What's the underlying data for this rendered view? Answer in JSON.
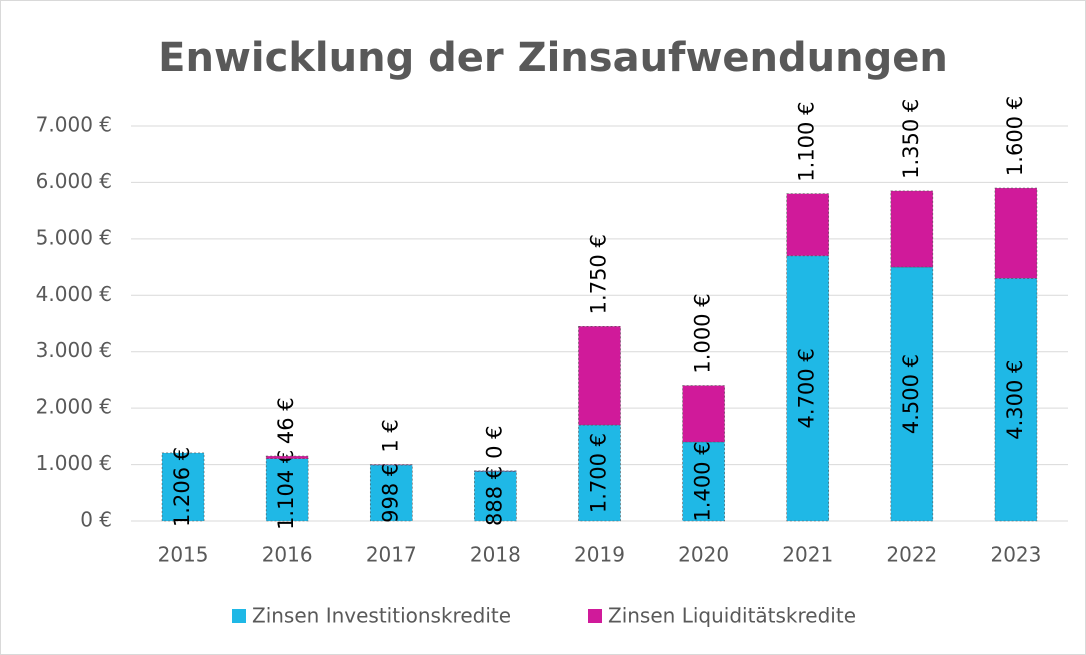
{
  "chart_data": {
    "type": "stacked-bar",
    "title": "Enwicklung der Zinsaufwendungen",
    "categories": [
      "2015",
      "2016",
      "2017",
      "2018",
      "2019",
      "2020",
      "2021",
      "2022",
      "2023"
    ],
    "series": [
      {
        "name": "Zinsen Investitionskredite",
        "color": "#1fb8e6",
        "values": [
          1206,
          1104,
          998,
          888,
          1700,
          1400,
          4700,
          4500,
          4300
        ],
        "value_labels": [
          "1.206 €",
          "1.104 €",
          "998 €",
          "888 €",
          "1.700 €",
          "1.400 €",
          "4.700 €",
          "4.500 €",
          "4.300 €"
        ]
      },
      {
        "name": "Zinsen Liquiditätskredite",
        "color": "#d01a9a",
        "values": [
          null,
          46,
          1,
          0,
          1750,
          1000,
          1100,
          1350,
          1600
        ],
        "value_labels": [
          null,
          "46 €",
          "1 €",
          "0 €",
          "1.750 €",
          "1.000 €",
          "1.100 €",
          "1.350 €",
          "1.600 €"
        ]
      }
    ],
    "ylim": [
      0,
      7000
    ],
    "yticks": [
      {
        "value": 0,
        "label": "0 €"
      },
      {
        "value": 1000,
        "label": "1.000 €"
      },
      {
        "value": 2000,
        "label": "2.000 €"
      },
      {
        "value": 3000,
        "label": "3.000 €"
      },
      {
        "value": 4000,
        "label": "4.000 €"
      },
      {
        "value": 5000,
        "label": "5.000 €"
      },
      {
        "value": 6000,
        "label": "6.000 €"
      },
      {
        "value": 7000,
        "label": "7.000 €"
      }
    ],
    "grid": true,
    "legend": "bottom"
  }
}
